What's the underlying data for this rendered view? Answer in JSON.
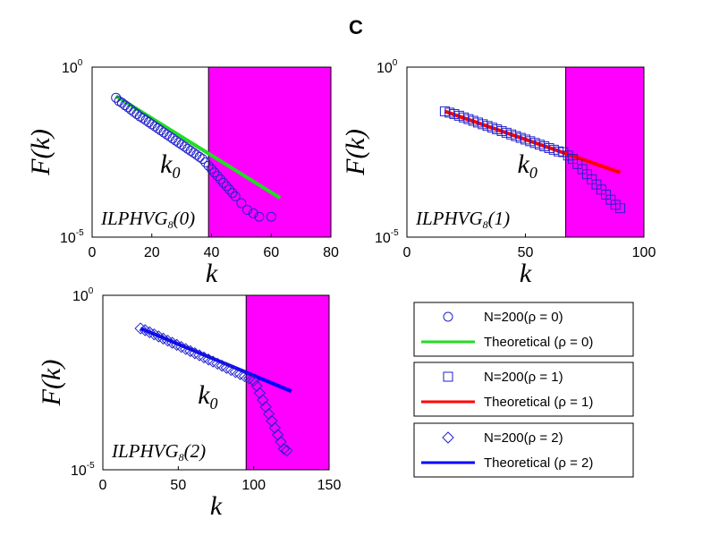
{
  "figure": {
    "panel_letter": "C"
  },
  "chart_data": [
    {
      "type": "scatter",
      "xlabel": "k",
      "ylabel": "F(k)",
      "xlim": [
        0,
        80
      ],
      "ylim_log10": [
        -5,
        0
      ],
      "xticks": [
        "0",
        "20",
        "40",
        "60",
        "80"
      ],
      "ytick_top": {
        "base": "10",
        "exp": "0"
      },
      "ytick_bottom": {
        "base": "10",
        "exp": "-5"
      },
      "k0": 39,
      "k0_label": {
        "var": "k",
        "sub": "0"
      },
      "shade_range": [
        39,
        80
      ],
      "label": {
        "name": "ILPHVG",
        "sub": "8",
        "arg": "(0)"
      },
      "series": [
        {
          "name": "N=200(ρ = 0)",
          "marker": "circle",
          "x": [
            8,
            9,
            10,
            11,
            12,
            13,
            14,
            15,
            16,
            17,
            18,
            19,
            20,
            21,
            22,
            23,
            24,
            25,
            26,
            27,
            28,
            29,
            30,
            31,
            32,
            33,
            34,
            35,
            36,
            37,
            38,
            39,
            40,
            41,
            42,
            43,
            44,
            45,
            46,
            47,
            48,
            50,
            52,
            54,
            56,
            60
          ],
          "y": [
            -0.9,
            -1.0,
            -1.05,
            -1.12,
            -1.18,
            -1.25,
            -1.32,
            -1.38,
            -1.45,
            -1.5,
            -1.56,
            -1.62,
            -1.68,
            -1.74,
            -1.8,
            -1.86,
            -1.92,
            -1.98,
            -2.04,
            -2.1,
            -2.16,
            -2.22,
            -2.28,
            -2.34,
            -2.4,
            -2.46,
            -2.52,
            -2.58,
            -2.64,
            -2.7,
            -2.8,
            -2.9,
            -3.0,
            -3.1,
            -3.2,
            -3.3,
            -3.4,
            -3.5,
            -3.6,
            -3.7,
            -3.8,
            -4.0,
            -4.2,
            -4.3,
            -4.4,
            -4.4
          ]
        },
        {
          "name": "Theoretical (ρ = 0)",
          "type": "line",
          "x": [
            8,
            63
          ],
          "y": [
            -0.85,
            -3.85
          ]
        }
      ]
    },
    {
      "type": "scatter",
      "xlabel": "k",
      "ylabel": "F(k)",
      "xlim": [
        0,
        100
      ],
      "ylim_log10": [
        -5,
        0
      ],
      "xticks": [
        "0",
        "50",
        "100"
      ],
      "ytick_top": {
        "base": "10",
        "exp": "0"
      },
      "ytick_bottom": {
        "base": "10",
        "exp": "-5"
      },
      "k0": 67,
      "k0_label": {
        "var": "k",
        "sub": "0"
      },
      "shade_range": [
        67,
        100
      ],
      "label": {
        "name": "ILPHVG",
        "sub": "8",
        "arg": "(1)"
      },
      "series": [
        {
          "name": "N=200(ρ = 1)",
          "marker": "square",
          "x": [
            16,
            18,
            20,
            22,
            24,
            26,
            28,
            30,
            32,
            34,
            36,
            38,
            40,
            42,
            44,
            46,
            48,
            50,
            52,
            54,
            56,
            58,
            60,
            62,
            64,
            66,
            68,
            70,
            72,
            74,
            76,
            78,
            80,
            82,
            84,
            86,
            88,
            90
          ],
          "y": [
            -1.3,
            -1.34,
            -1.38,
            -1.43,
            -1.48,
            -1.53,
            -1.58,
            -1.63,
            -1.68,
            -1.73,
            -1.78,
            -1.83,
            -1.88,
            -1.93,
            -1.98,
            -2.03,
            -2.08,
            -2.13,
            -2.18,
            -2.23,
            -2.28,
            -2.33,
            -2.38,
            -2.43,
            -2.48,
            -2.5,
            -2.6,
            -2.7,
            -2.85,
            -3.0,
            -3.15,
            -3.3,
            -3.45,
            -3.6,
            -3.75,
            -3.9,
            -4.05,
            -4.15
          ]
        },
        {
          "name": "Theoretical (ρ = 1)",
          "type": "line",
          "x": [
            16,
            90
          ],
          "y": [
            -1.3,
            -3.1
          ]
        }
      ]
    },
    {
      "type": "scatter",
      "xlabel": "k",
      "ylabel": "F(k)",
      "xlim": [
        0,
        150
      ],
      "ylim_log10": [
        -5,
        0
      ],
      "xticks": [
        "0",
        "50",
        "100",
        "150"
      ],
      "ytick_top": {
        "base": "10",
        "exp": "0"
      },
      "ytick_bottom": {
        "base": "10",
        "exp": "-5"
      },
      "k0": 95,
      "k0_label": {
        "var": "k",
        "sub": "0"
      },
      "shade_range": [
        95,
        150
      ],
      "label": {
        "name": "ILPHVG",
        "sub": "8",
        "arg": "(2)"
      },
      "series": [
        {
          "name": "N=200(ρ = 2)",
          "marker": "diamond",
          "x": [
            25,
            28,
            31,
            34,
            37,
            40,
            43,
            46,
            49,
            52,
            55,
            58,
            61,
            64,
            67,
            70,
            73,
            76,
            79,
            82,
            85,
            88,
            91,
            94,
            97,
            100,
            102,
            104,
            106,
            108,
            110,
            112,
            114,
            116,
            118,
            120,
            122
          ],
          "y": [
            -0.95,
            -1.0,
            -1.06,
            -1.12,
            -1.18,
            -1.24,
            -1.3,
            -1.36,
            -1.42,
            -1.48,
            -1.54,
            -1.6,
            -1.66,
            -1.72,
            -1.78,
            -1.84,
            -1.9,
            -1.96,
            -2.02,
            -2.08,
            -2.14,
            -2.2,
            -2.26,
            -2.32,
            -2.38,
            -2.45,
            -2.6,
            -2.8,
            -3.0,
            -3.2,
            -3.4,
            -3.6,
            -3.8,
            -4.0,
            -4.2,
            -4.4,
            -4.45
          ]
        },
        {
          "name": "Theoretical (ρ = 2)",
          "type": "line",
          "x": [
            25,
            125
          ],
          "y": [
            -0.95,
            -2.75
          ]
        }
      ]
    }
  ],
  "legends": [
    {
      "items": [
        {
          "label": "N=200(ρ = 0)",
          "marker": "circle"
        },
        {
          "label": "Theoretical (ρ = 0)",
          "marker": "line",
          "color": "#22dd22"
        }
      ]
    },
    {
      "items": [
        {
          "label": "N=200(ρ = 1)",
          "marker": "square"
        },
        {
          "label": "Theoretical (ρ = 1)",
          "marker": "line",
          "color": "#ff0000"
        }
      ]
    },
    {
      "items": [
        {
          "label": "N=200(ρ = 2)",
          "marker": "diamond"
        },
        {
          "label": "Theoretical (ρ = 2)",
          "marker": "line",
          "color": "#0000ff"
        }
      ]
    }
  ],
  "colors": {
    "shade": "#ff00ff",
    "marker": "#2222cc",
    "line0": "#22dd22",
    "line1": "#ff0000",
    "line2": "#0000ff"
  }
}
